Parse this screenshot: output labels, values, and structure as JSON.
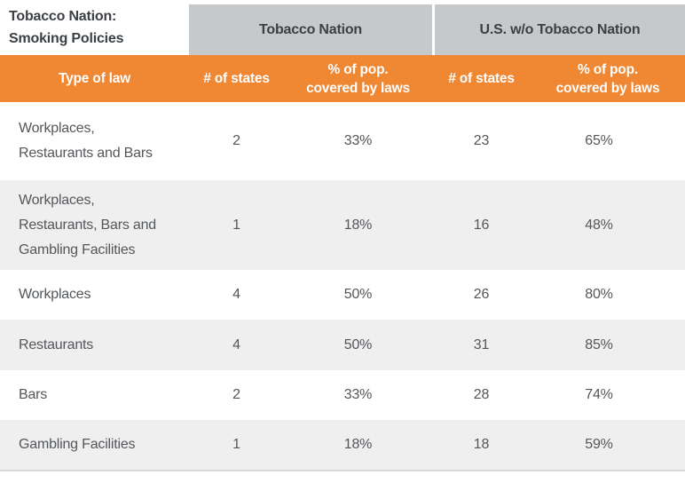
{
  "title": {
    "text": "Tobacco Nation:\nSmoking Policies"
  },
  "groups": {
    "tobacco_nation": "Tobacco Nation",
    "us_without": "U.S. w/o Tobacco Nation"
  },
  "headers": {
    "type_of_law": "Type of law",
    "num_states": "# of states",
    "pct_pop": "% of pop.\ncovered by laws"
  },
  "table": {
    "rows": [
      {
        "law": "Workplaces,\nRestaurants and Bars",
        "tn_states": "2",
        "tn_pct": "33%",
        "us_states": "23",
        "us_pct": "65%"
      },
      {
        "law": "Workplaces,\nRestaurants, Bars and\nGambling Facilities",
        "tn_states": "1",
        "tn_pct": "18%",
        "us_states": "16",
        "us_pct": "48%"
      },
      {
        "law": "Workplaces",
        "tn_states": "4",
        "tn_pct": "50%",
        "us_states": "26",
        "us_pct": "80%"
      },
      {
        "law": "Restaurants",
        "tn_states": "4",
        "tn_pct": "50%",
        "us_states": "31",
        "us_pct": "85%"
      },
      {
        "law": "Bars",
        "tn_states": "2",
        "tn_pct": "33%",
        "us_states": "28",
        "us_pct": "74%"
      },
      {
        "law": "Gambling Facilities",
        "tn_states": "1",
        "tn_pct": "18%",
        "us_states": "18",
        "us_pct": "59%"
      }
    ]
  },
  "colors": {
    "accent_orange": "#F08732",
    "band_gray": "#C6C9CB",
    "row_alt_gray": "#EFEFF0",
    "heading_text": "#3C4044",
    "body_text": "#54575A",
    "bottom_border": "#D9DADB"
  },
  "chart_data": {
    "type": "table",
    "title": "Tobacco Nation: Smoking Policies",
    "column_groups": [
      "Tobacco Nation",
      "U.S. w/o Tobacco Nation"
    ],
    "columns": [
      "Type of law",
      "# of states",
      "% of pop. covered by laws",
      "# of states",
      "% of pop. covered by laws"
    ],
    "rows": [
      [
        "Workplaces, Restaurants and Bars",
        2,
        "33%",
        23,
        "65%"
      ],
      [
        "Workplaces, Restaurants, Bars and Gambling Facilities",
        1,
        "18%",
        16,
        "48%"
      ],
      [
        "Workplaces",
        4,
        "50%",
        26,
        "80%"
      ],
      [
        "Restaurants",
        4,
        "50%",
        31,
        "85%"
      ],
      [
        "Bars",
        2,
        "33%",
        28,
        "74%"
      ],
      [
        "Gambling Facilities",
        1,
        "18%",
        18,
        "59%"
      ]
    ],
    "layout_hints": {
      "row_shading": "alternating white / light gray",
      "header_style": "orange bar with white bold text",
      "group_header_style": "gray bar over the two right-hand column pairs"
    }
  }
}
